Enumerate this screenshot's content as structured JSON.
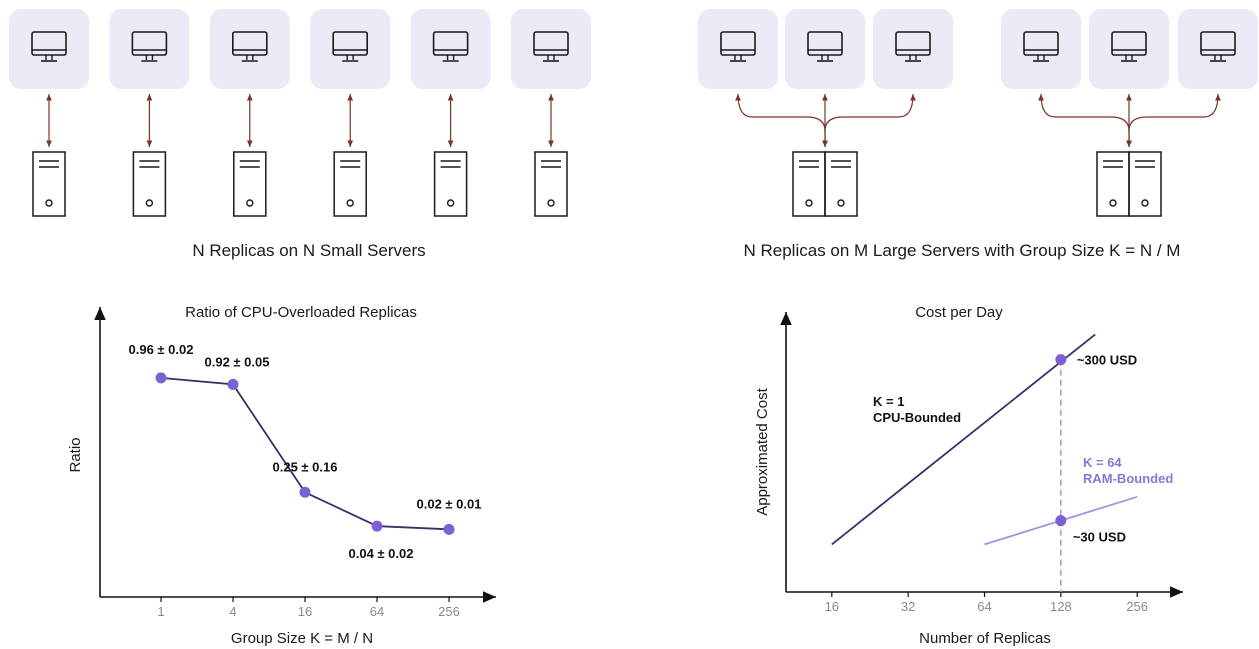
{
  "diagram": {
    "left": {
      "caption": "N Replicas on N Small Servers",
      "client_count": 6,
      "server_count": 6
    },
    "right": {
      "caption": "N Replicas on M Large Servers with Group Size K = N / M",
      "groups": 2,
      "clients_per_group": 3
    },
    "colors": {
      "client_box": "#eceaf7",
      "connector": "#7a3428",
      "server_outline": "#1a1a1a"
    },
    "icons": {
      "client": "monitor-icon",
      "server": "server-tower-icon"
    }
  },
  "chart_data": [
    {
      "type": "line",
      "title": "Ratio of CPU-Overloaded Replicas",
      "xlabel": "Group Size K = M / N",
      "ylabel": "Ratio",
      "categories": [
        "1",
        "4",
        "16",
        "64",
        "256"
      ],
      "values": [
        0.96,
        0.92,
        0.25,
        0.04,
        0.02
      ],
      "labels": [
        "0.96 ± 0.02",
        "0.92 ± 0.05",
        "0.25 ± 0.16",
        "0.04 ± 0.02",
        "0.02 ± 0.01"
      ],
      "ylim": [
        -0.4,
        1.4
      ],
      "color": "#3b2f6b",
      "marker_color": "#7b61d1",
      "grid": false
    },
    {
      "type": "line",
      "title": "Cost per Day",
      "xlabel": "Number of Replicas",
      "ylabel": "Approximated Cost",
      "x_ticks": [
        "16",
        "32",
        "64",
        "128",
        "256"
      ],
      "x_log2": [
        4,
        5,
        6,
        7,
        8
      ],
      "xlim": [
        3.4,
        8.6
      ],
      "ylim": [
        0,
        1
      ],
      "series": [
        {
          "name": "K = 1\nCPU-Bounded",
          "name_lines": [
            "K = 1",
            "CPU-Bounded"
          ],
          "x_log2": [
            4,
            7.45
          ],
          "y": [
            0.17,
            0.92
          ],
          "color": "#3b2f6b"
        },
        {
          "name": "K = 64\nRAM-Bounded",
          "name_lines": [
            "K = 64",
            "RAM-Bounded"
          ],
          "x_log2": [
            6,
            8
          ],
          "y": [
            0.17,
            0.34
          ],
          "color": "#a593e6"
        }
      ],
      "markers": [
        {
          "x_log2": 7,
          "y": 0.83,
          "label": "~300 USD",
          "color": "#7b61d1"
        },
        {
          "x_log2": 7,
          "y": 0.255,
          "label": "~30 USD",
          "color": "#7b61d1"
        }
      ],
      "reference_line": {
        "x_log2": 7,
        "color": "#a99be0",
        "style": "dashed"
      },
      "grid": false
    }
  ]
}
